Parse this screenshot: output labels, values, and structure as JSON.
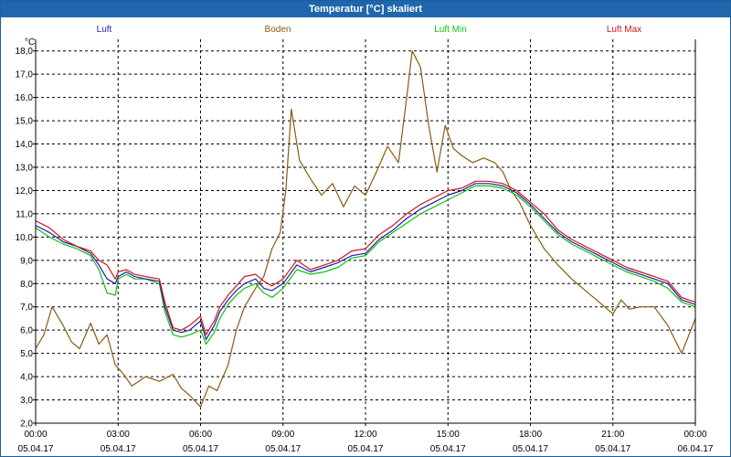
{
  "window": {
    "title": "Temperatur [°C] skaliert"
  },
  "chart_data": {
    "type": "line",
    "title": "Temperatur [°C] skaliert",
    "ylabel": "°C",
    "xlabel": "",
    "ylim": [
      2.0,
      18.5
    ],
    "xlim": [
      0,
      24
    ],
    "grid": true,
    "legend_position": "top",
    "y_ticks": [
      "2,0",
      "3,0",
      "4,0",
      "5,0",
      "6,0",
      "7,0",
      "8,0",
      "9,0",
      "10,0",
      "11,0",
      "12,0",
      "13,0",
      "14,0",
      "15,0",
      "16,0",
      "17,0",
      "18,0"
    ],
    "y_tick_values": [
      2,
      3,
      4,
      5,
      6,
      7,
      8,
      9,
      10,
      11,
      12,
      13,
      14,
      15,
      16,
      17,
      18
    ],
    "x_ticks": [
      {
        "hours": 0,
        "time": "00:00",
        "date": "05.04.17"
      },
      {
        "hours": 3,
        "time": "03:00",
        "date": "05.04.17"
      },
      {
        "hours": 6,
        "time": "06:00",
        "date": "05.04.17"
      },
      {
        "hours": 9,
        "time": "09:00",
        "date": "05.04.17"
      },
      {
        "hours": 12,
        "time": "12:00",
        "date": "05.04.17"
      },
      {
        "hours": 15,
        "time": "15:00",
        "date": "05.04.17"
      },
      {
        "hours": 18,
        "time": "18:00",
        "date": "05.04.17"
      },
      {
        "hours": 21,
        "time": "21:00",
        "date": "05.04.17"
      },
      {
        "hours": 24,
        "time": "00:00",
        "date": "06.04.17"
      }
    ],
    "series": [
      {
        "name": "Luft",
        "color": "#1f1fa8",
        "x": [
          0,
          0.5,
          1,
          1.5,
          2,
          2.3,
          2.6,
          2.9,
          3,
          3.3,
          3.6,
          4,
          4.5,
          4.7,
          5,
          5.3,
          5.6,
          6,
          6.2,
          6.5,
          6.7,
          7,
          7.3,
          7.6,
          8,
          8.3,
          8.6,
          9,
          9.5,
          10,
          10.5,
          11,
          11.5,
          12,
          12.5,
          13,
          13.5,
          14,
          14.5,
          15,
          15.5,
          16,
          16.5,
          17,
          17.5,
          18,
          18.5,
          19,
          19.5,
          20,
          20.5,
          21,
          21.5,
          22,
          22.5,
          23,
          23.5,
          24
        ],
        "values": [
          10.5,
          10.2,
          9.8,
          9.6,
          9.3,
          8.8,
          8.2,
          8.0,
          8.3,
          8.5,
          8.3,
          8.2,
          8.1,
          7.0,
          6.0,
          5.9,
          6.0,
          6.4,
          5.6,
          6.2,
          6.8,
          7.3,
          7.7,
          8.0,
          8.2,
          7.8,
          7.7,
          8.0,
          8.8,
          8.5,
          8.7,
          8.9,
          9.2,
          9.3,
          9.9,
          10.3,
          10.8,
          11.2,
          11.5,
          11.8,
          12.0,
          12.3,
          12.3,
          12.2,
          11.9,
          11.4,
          10.8,
          10.2,
          9.8,
          9.5,
          9.2,
          8.9,
          8.6,
          8.4,
          8.2,
          8.0,
          7.3,
          7.1
        ]
      },
      {
        "name": "Boden",
        "color": "#8a5a10",
        "x": [
          0,
          0.3,
          0.6,
          1,
          1.3,
          1.6,
          2,
          2.3,
          2.6,
          2.9,
          3.2,
          3.5,
          4,
          4.5,
          5,
          5.3,
          5.6,
          6,
          6.3,
          6.6,
          7,
          7.3,
          7.6,
          8,
          8.3,
          8.6,
          8.9,
          9.1,
          9.3,
          9.6,
          10,
          10.4,
          10.8,
          11.2,
          11.6,
          12,
          12.4,
          12.8,
          13.2,
          13.5,
          13.7,
          14,
          14.3,
          14.6,
          14.9,
          15.2,
          15.5,
          15.9,
          16.3,
          16.7,
          17,
          17.3,
          17.6,
          18,
          18.5,
          19,
          19.5,
          20,
          20.5,
          21,
          21.3,
          21.6,
          22,
          22.5,
          23,
          23.5,
          24
        ],
        "values": [
          5.2,
          5.8,
          7.0,
          6.2,
          5.5,
          5.2,
          6.3,
          5.4,
          5.8,
          4.5,
          4.1,
          3.6,
          4.0,
          3.8,
          4.1,
          3.5,
          3.2,
          2.7,
          3.6,
          3.4,
          4.5,
          6.0,
          7.0,
          7.8,
          8.3,
          9.5,
          10.2,
          12.0,
          15.5,
          13.3,
          12.5,
          11.8,
          12.3,
          11.3,
          12.2,
          11.8,
          12.8,
          13.9,
          13.2,
          16.0,
          18.0,
          17.3,
          14.8,
          12.8,
          14.8,
          13.8,
          13.5,
          13.2,
          13.4,
          13.2,
          12.8,
          12.0,
          11.5,
          10.5,
          9.5,
          8.8,
          8.2,
          7.7,
          7.2,
          6.7,
          7.3,
          6.9,
          7.0,
          7.0,
          6.2,
          5.0,
          6.5
        ]
      },
      {
        "name": "Luft Min",
        "color": "#10c010",
        "x": [
          0,
          0.5,
          1,
          1.5,
          2,
          2.3,
          2.6,
          2.9,
          3,
          3.3,
          3.6,
          4,
          4.5,
          4.7,
          5,
          5.3,
          5.6,
          6,
          6.2,
          6.5,
          6.7,
          7,
          7.3,
          7.6,
          8,
          8.3,
          8.6,
          9,
          9.5,
          10,
          10.5,
          11,
          11.5,
          12,
          12.5,
          13,
          13.5,
          14,
          14.5,
          15,
          15.5,
          16,
          16.5,
          17,
          17.5,
          18,
          18.5,
          19,
          19.5,
          20,
          20.5,
          21,
          21.5,
          22,
          22.5,
          23,
          23.5,
          24
        ],
        "values": [
          10.4,
          10.0,
          9.7,
          9.5,
          9.2,
          8.6,
          7.6,
          7.5,
          8.2,
          8.4,
          8.2,
          8.2,
          8.0,
          6.8,
          5.8,
          5.7,
          5.8,
          6.0,
          5.4,
          5.9,
          6.5,
          7.1,
          7.5,
          7.8,
          8.0,
          7.6,
          7.4,
          7.8,
          8.6,
          8.4,
          8.5,
          8.7,
          9.1,
          9.2,
          9.8,
          10.2,
          10.6,
          11.0,
          11.3,
          11.6,
          11.9,
          12.2,
          12.2,
          12.1,
          11.8,
          11.3,
          10.7,
          10.1,
          9.7,
          9.4,
          9.1,
          8.8,
          8.5,
          8.3,
          8.1,
          7.8,
          7.2,
          7.0
        ]
      },
      {
        "name": "Luft Max",
        "color": "#cc1818",
        "x": [
          0,
          0.5,
          1,
          1.5,
          2,
          2.3,
          2.6,
          2.9,
          3,
          3.3,
          3.6,
          4,
          4.5,
          4.7,
          5,
          5.3,
          5.6,
          6,
          6.2,
          6.5,
          6.7,
          7,
          7.3,
          7.6,
          8,
          8.3,
          8.6,
          9,
          9.5,
          10,
          10.5,
          11,
          11.5,
          12,
          12.5,
          13,
          13.5,
          14,
          14.5,
          15,
          15.5,
          16,
          16.5,
          17,
          17.5,
          18,
          18.5,
          19,
          19.5,
          20,
          20.5,
          21,
          21.5,
          22,
          22.5,
          23,
          23.5,
          24
        ],
        "values": [
          10.7,
          10.4,
          9.9,
          9.6,
          9.4,
          9.0,
          8.8,
          8.2,
          8.5,
          8.6,
          8.4,
          8.3,
          8.2,
          7.2,
          6.1,
          6.0,
          6.2,
          6.6,
          5.8,
          6.4,
          7.0,
          7.5,
          7.9,
          8.3,
          8.4,
          8.1,
          7.9,
          8.2,
          9.0,
          8.6,
          8.8,
          9.0,
          9.4,
          9.5,
          10.1,
          10.5,
          11.0,
          11.4,
          11.7,
          12.0,
          12.1,
          12.4,
          12.4,
          12.3,
          12.0,
          11.5,
          11.0,
          10.3,
          9.9,
          9.6,
          9.3,
          9.0,
          8.7,
          8.5,
          8.3,
          8.1,
          7.4,
          7.2
        ]
      }
    ]
  }
}
